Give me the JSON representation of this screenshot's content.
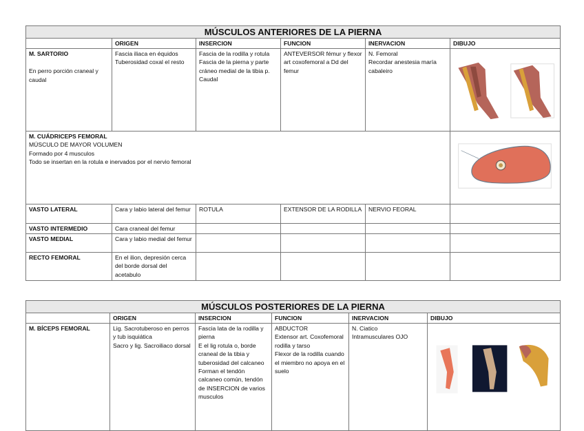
{
  "anterior": {
    "title": "MÚSCULOS  ANTERIORES DE LA PIERNA",
    "headers": [
      "",
      "ORIGEN",
      "INSERCION",
      "FUNCION",
      "INERVACION",
      "DIBUJO"
    ],
    "sartorio": {
      "name": "M. SARTORIO",
      "note": "En perro porción craneal y caudal",
      "origen": "Fascia iliaca en équidos\nTuberosidad coxal el resto",
      "insercion": "Fascia de la rodilla y rotula\nFascia de la pierna y parte cráneo medial de la tibia p. Caudal",
      "funcion": "ANTEVERSOR fémur y flexor art coxofemoral a Dd del femur",
      "inervacion": "N. Femoral\nRecordar anestesia maría cabaleiro"
    },
    "cuadriceps": {
      "name": "M. CUÁDRICEPS FEMORAL",
      "lines": "MÚSCULO DE MAYOR VOLUMEN\nFormado por 4 musculos\nTodo se insertan en la rotula e inervados por el nervio femoral"
    },
    "rows": [
      {
        "name": "VASTO LATERAL",
        "origen": "Cara y labio lateral del femur",
        "insercion": "ROTULA",
        "funcion": "EXTENSOR  DE LA RODILLA",
        "inervacion": "NERVIO FEORAL"
      },
      {
        "name": "VASTO INTERMEDIO",
        "origen": "Cara craneal del femur",
        "insercion": "",
        "funcion": "",
        "inervacion": ""
      },
      {
        "name": "VASTO MEDIAL",
        "origen": "Cara y labio medial del femur",
        "insercion": "",
        "funcion": "",
        "inervacion": ""
      },
      {
        "name": "RECTO FEMORAL",
        "origen": "En el ilion, depresión cerca del borde dorsal del acetabulo",
        "insercion": "",
        "funcion": "",
        "inervacion": ""
      }
    ]
  },
  "posterior": {
    "title": "MÚSCULOS POSTERIORES DE LA PIERNA",
    "headers": [
      "",
      "ORIGEN",
      "INSERCION",
      "FUNCION",
      "INERVACION",
      "DIBUJO"
    ],
    "biceps": {
      "name": "M. BÍCEPS FEMORAL",
      "origen": "Lig. Sacrotuberoso en perros y tub isquiática\nSacro y lig. Sacroiliaco dorsal",
      "insercion": "Fascia lata de la rodilla y pierna\nE el lig rotula o, borde craneal de la tibia y tuberosidad del calcaneo\nForman el tendón calcaneo común, tendón de INSERCION de varios musculos",
      "funcion": "ABDUCTOR\nExtensor art. Coxofemoral rodilla y tarso\nFlexor de la rodilla cuando el miembro no apoya en el suelo",
      "inervacion": "N. Ciatico\nIntramusculares OJO"
    }
  },
  "colors": {
    "title_bg": "#e8e8e8",
    "border": "#777777",
    "muscle": "#d9664e",
    "tendon": "#d9a03a"
  }
}
